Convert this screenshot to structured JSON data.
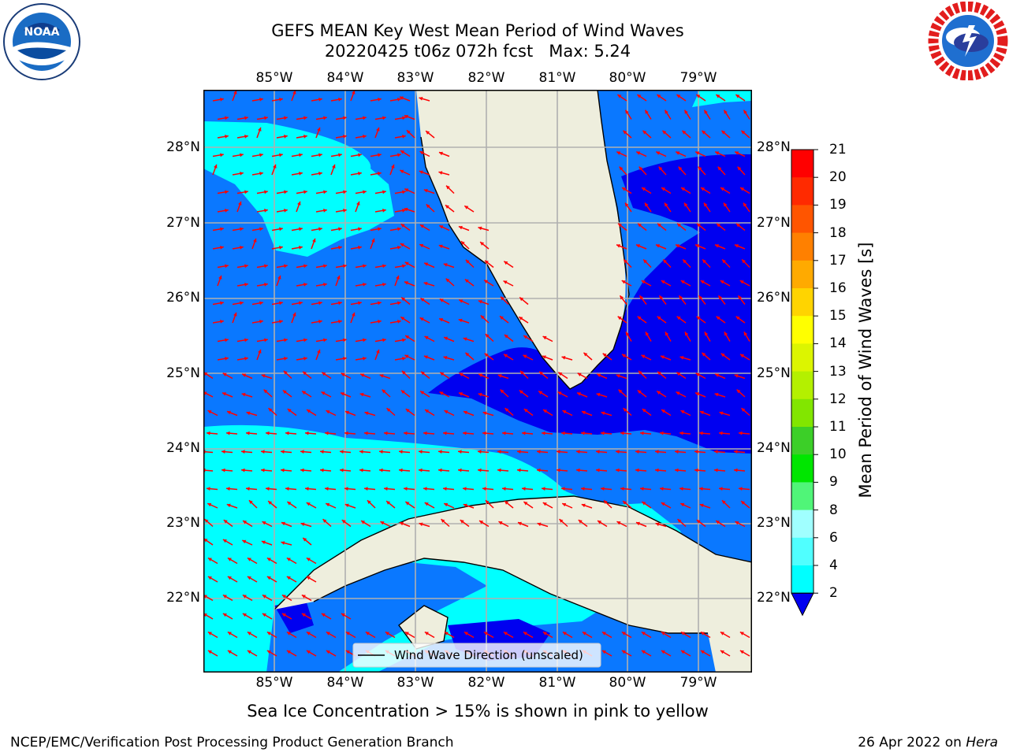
{
  "title": {
    "line1": "GEFS MEAN Key West Mean Period of Wind Waves",
    "line2": "20220425 t06z 072h fcst   Max: 5.24"
  },
  "lon_ticks": [
    "85°W",
    "84°W",
    "83°W",
    "82°W",
    "81°W",
    "80°W",
    "79°W"
  ],
  "lat_ticks": [
    "28°N",
    "27°N",
    "26°N",
    "25°N",
    "24°N",
    "23°N",
    "22°N"
  ],
  "legend": {
    "label": "Wind Wave Direction (unscaled)"
  },
  "colorbar": {
    "label": "Mean Period of Wind Waves [s]",
    "ticks": [
      "21",
      "20",
      "19",
      "18",
      "17",
      "16",
      "15",
      "14",
      "13",
      "12",
      "11",
      "10",
      "9",
      "8",
      "6",
      "4",
      "2"
    ],
    "colors": [
      "#ff0000",
      "#ff2a00",
      "#ff5500",
      "#ff8000",
      "#ffaa00",
      "#ffd400",
      "#ffff00",
      "#dcf500",
      "#b4f000",
      "#82e600",
      "#3ccf28",
      "#00e600",
      "#50f578",
      "#a0ffff",
      "#50ffff",
      "#00ffff",
      "#00d2ff",
      "#0a78ff"
    ],
    "under_color": "#0000f0"
  },
  "map_colors": {
    "range_2_4": "#0a78ff",
    "range_4_6": "#00ffff",
    "under_2": "#0000f0",
    "land": "#eeeedd",
    "arrow": "#ff0000"
  },
  "footnote": "Sea Ice Concentration > 15% is shown in pink to yellow",
  "credit": "NCEP/EMC/Verification Post Processing Product Generation Branch",
  "date": {
    "text": "26 Apr 2022 on ",
    "machine": "Hera"
  },
  "logos": {
    "left": "NOAA",
    "right": "NATIONAL WEATHER SERVICE"
  }
}
